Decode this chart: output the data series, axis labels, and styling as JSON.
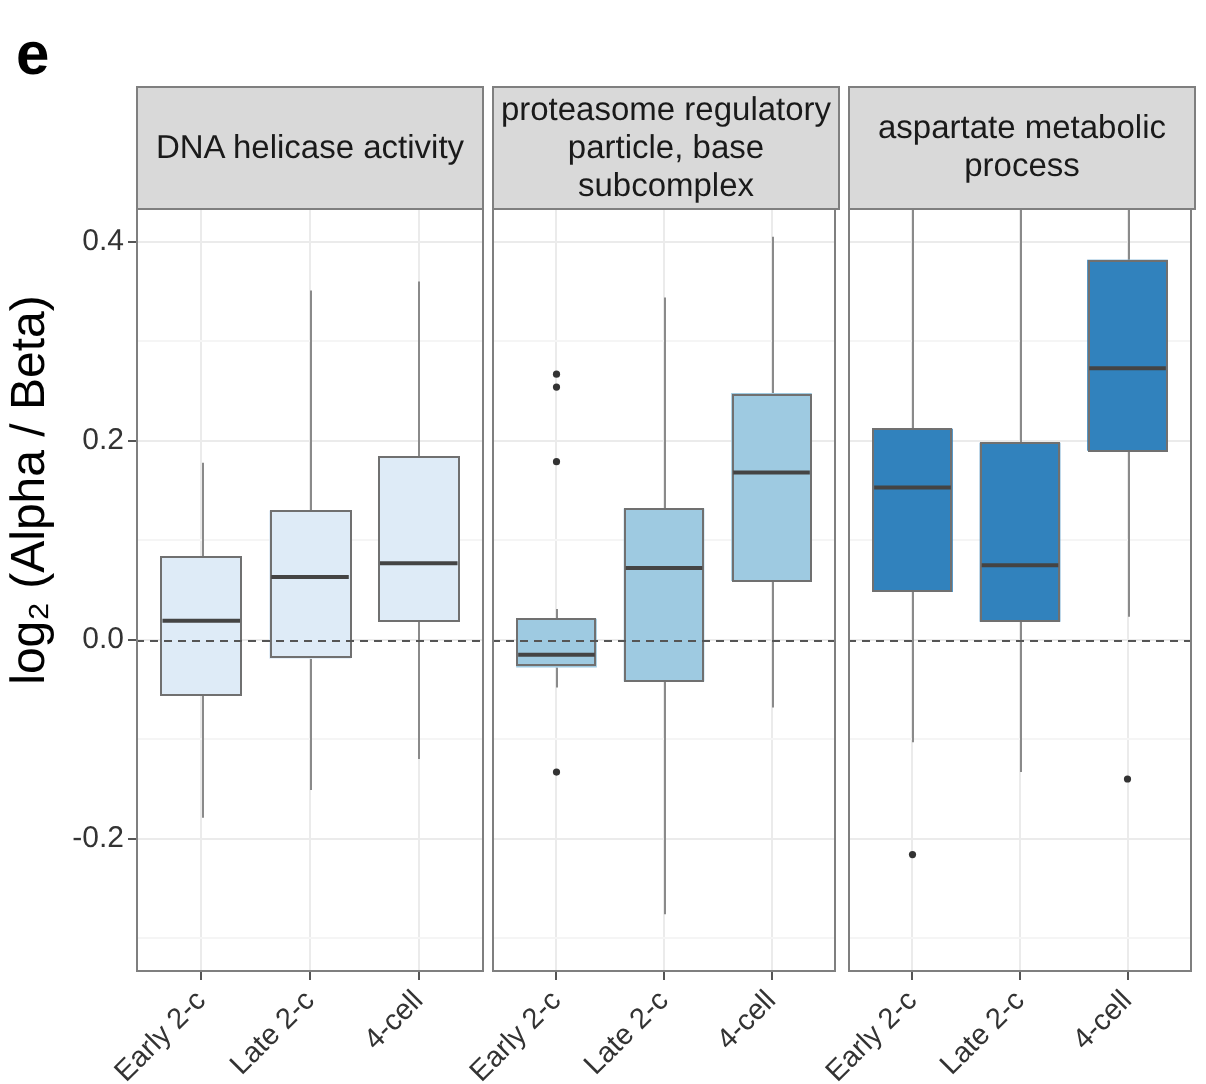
{
  "chart_data": [
    {
      "type": "box",
      "title": "DNA helicase activity",
      "ylabel": "log₂ (Alpha / Beta)",
      "annotations": [
        "e"
      ],
      "categories": [
        "Early 2-c",
        "Late 2-c",
        "4-cell"
      ],
      "color": "#deebf7",
      "boxes": [
        {
          "low": -0.179,
          "q1": -0.056,
          "median": 0.019,
          "q3": 0.084,
          "high": 0.178
        },
        {
          "low": -0.151,
          "q1": -0.019,
          "median": 0.063,
          "q3": 0.13,
          "high": 0.351
        },
        {
          "low": -0.12,
          "q1": 0.018,
          "median": 0.077,
          "q3": 0.184,
          "high": 0.36
        }
      ],
      "ylim": [
        -0.334,
        0.434
      ],
      "yticks": [
        {
          "value": -0.3,
          "label": null
        },
        -0.2,
        {
          "value": -0.1,
          "label": null
        },
        {
          "value": 0,
          "label": "0.0"
        },
        {
          "value": 0.1,
          "label": null
        },
        0.2,
        {
          "value": 0.3,
          "label": null
        },
        0.4
      ],
      "ref_lines": [
        {
          "axis": "y",
          "value": 0,
          "color": "#555555",
          "line_style": "dashed"
        }
      ],
      "grid": true
    },
    {
      "type": "box",
      "title": "proteasome regulatory particle, base subcomplex",
      "categories": [
        "Early 2-c",
        "Late 2-c",
        "4-cell"
      ],
      "color": "#9ecae1",
      "boxes": [
        {
          "low": -0.048,
          "q1": -0.028,
          "median": -0.015,
          "q3": 0.021,
          "high": 0.031,
          "outliers": [
            0.267,
            0.254,
            0.179,
            -0.133
          ]
        },
        {
          "low": -0.276,
          "q1": -0.042,
          "median": 0.072,
          "q3": 0.132,
          "high": 0.344
        },
        {
          "low": -0.068,
          "q1": 0.059,
          "median": 0.168,
          "q3": 0.248,
          "high": 0.405
        }
      ],
      "ylim": [
        -0.334,
        0.434
      ],
      "yticks": [
        {
          "value": -0.3,
          "label": null
        },
        -0.2,
        {
          "value": -0.1,
          "label": null
        },
        0,
        {
          "value": 0.1,
          "label": null
        },
        0.2,
        {
          "value": 0.3,
          "label": null
        },
        0.4
      ],
      "ref_lines": [
        {
          "axis": "y",
          "value": 0,
          "color": "#555555",
          "line_style": "dashed"
        }
      ],
      "grid": true,
      "tick_labels": "x"
    },
    {
      "type": "box",
      "title": "aspartate metabolic process",
      "categories": [
        "Early 2-c",
        "Late 2-c",
        "4-cell"
      ],
      "color": "#3182bd",
      "boxes": [
        {
          "low": -0.103,
          "q1": 0.048,
          "median": 0.153,
          "q3": 0.212,
          "high": 0.434,
          "outliers": [
            -0.216
          ]
        },
        {
          "low": -0.133,
          "q1": 0.018,
          "median": 0.075,
          "q3": 0.198,
          "high": 0.434
        },
        {
          "low": 0.023,
          "q1": 0.19,
          "median": 0.273,
          "q3": 0.382,
          "high": 0.434,
          "outliers": [
            -0.14
          ]
        }
      ],
      "ylim": [
        -0.334,
        0.434
      ],
      "yticks": [
        {
          "value": -0.3,
          "label": null
        },
        -0.2,
        {
          "value": -0.1,
          "label": null
        },
        0,
        {
          "value": 0.1,
          "label": null
        },
        0.2,
        {
          "value": 0.3,
          "label": null
        },
        0.4
      ],
      "ref_lines": [
        {
          "axis": "y",
          "value": 0,
          "color": "#555555",
          "line_style": "dashed"
        }
      ],
      "grid": true,
      "tick_labels": "x"
    }
  ]
}
